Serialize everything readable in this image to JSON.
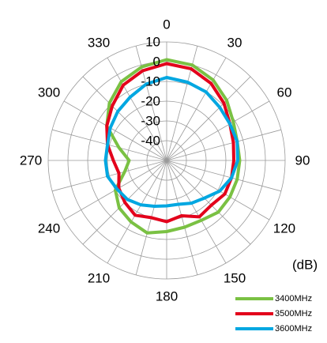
{
  "chart_data": {
    "type": "polar-line",
    "angle_labels": [
      "0",
      "30",
      "60",
      "90",
      "120",
      "150",
      "180",
      "210",
      "240",
      "270",
      "300",
      "330"
    ],
    "radial_labels": [
      "-40",
      "-30",
      "-20",
      "-10",
      "0",
      "10"
    ],
    "radial_range": [
      -50,
      10
    ],
    "unit_label": "(dB)",
    "grid": true,
    "legend_position": "bottom-right",
    "series": [
      {
        "name": "3400MHz",
        "color": "#7ac143",
        "points": [
          [
            0,
            1
          ],
          [
            15,
            0
          ],
          [
            30,
            -3
          ],
          [
            45,
            -7
          ],
          [
            60,
            -11
          ],
          [
            75,
            -13
          ],
          [
            90,
            -13
          ],
          [
            105,
            -13
          ],
          [
            120,
            -13
          ],
          [
            135,
            -13
          ],
          [
            150,
            -15
          ],
          [
            165,
            -15
          ],
          [
            180,
            -14
          ],
          [
            195,
            -12
          ],
          [
            210,
            -14
          ],
          [
            225,
            -16
          ],
          [
            240,
            -20
          ],
          [
            255,
            -28
          ],
          [
            270,
            -31
          ],
          [
            285,
            -25
          ],
          [
            300,
            -15
          ],
          [
            315,
            -9
          ],
          [
            330,
            -4
          ],
          [
            345,
            -1
          ],
          [
            360,
            1
          ]
        ]
      },
      {
        "name": "3500MHz",
        "color": "#e3001b",
        "points": [
          [
            0,
            -1
          ],
          [
            15,
            -2
          ],
          [
            30,
            -5
          ],
          [
            45,
            -9
          ],
          [
            60,
            -13
          ],
          [
            75,
            -15
          ],
          [
            90,
            -16
          ],
          [
            105,
            -16
          ],
          [
            120,
            -16
          ],
          [
            135,
            -18
          ],
          [
            150,
            -17
          ],
          [
            165,
            -21
          ],
          [
            180,
            -19
          ],
          [
            195,
            -20
          ],
          [
            210,
            -18
          ],
          [
            225,
            -20
          ],
          [
            240,
            -22
          ],
          [
            255,
            -25
          ],
          [
            270,
            -23
          ],
          [
            285,
            -19
          ],
          [
            300,
            -15
          ],
          [
            315,
            -11
          ],
          [
            330,
            -6
          ],
          [
            345,
            -3
          ],
          [
            360,
            -1
          ]
        ]
      },
      {
        "name": "3600MHz",
        "color": "#00a7e1",
        "points": [
          [
            0,
            -8
          ],
          [
            15,
            -9
          ],
          [
            30,
            -10
          ],
          [
            45,
            -12
          ],
          [
            60,
            -13
          ],
          [
            75,
            -13
          ],
          [
            90,
            -14
          ],
          [
            105,
            -16
          ],
          [
            120,
            -19
          ],
          [
            135,
            -23
          ],
          [
            150,
            -25
          ],
          [
            165,
            -27
          ],
          [
            180,
            -27
          ],
          [
            195,
            -26
          ],
          [
            210,
            -24
          ],
          [
            225,
            -22
          ],
          [
            240,
            -21
          ],
          [
            255,
            -19
          ],
          [
            270,
            -19
          ],
          [
            285,
            -19
          ],
          [
            300,
            -17
          ],
          [
            315,
            -15
          ],
          [
            330,
            -13
          ],
          [
            345,
            -10
          ],
          [
            360,
            -8
          ]
        ]
      }
    ]
  }
}
